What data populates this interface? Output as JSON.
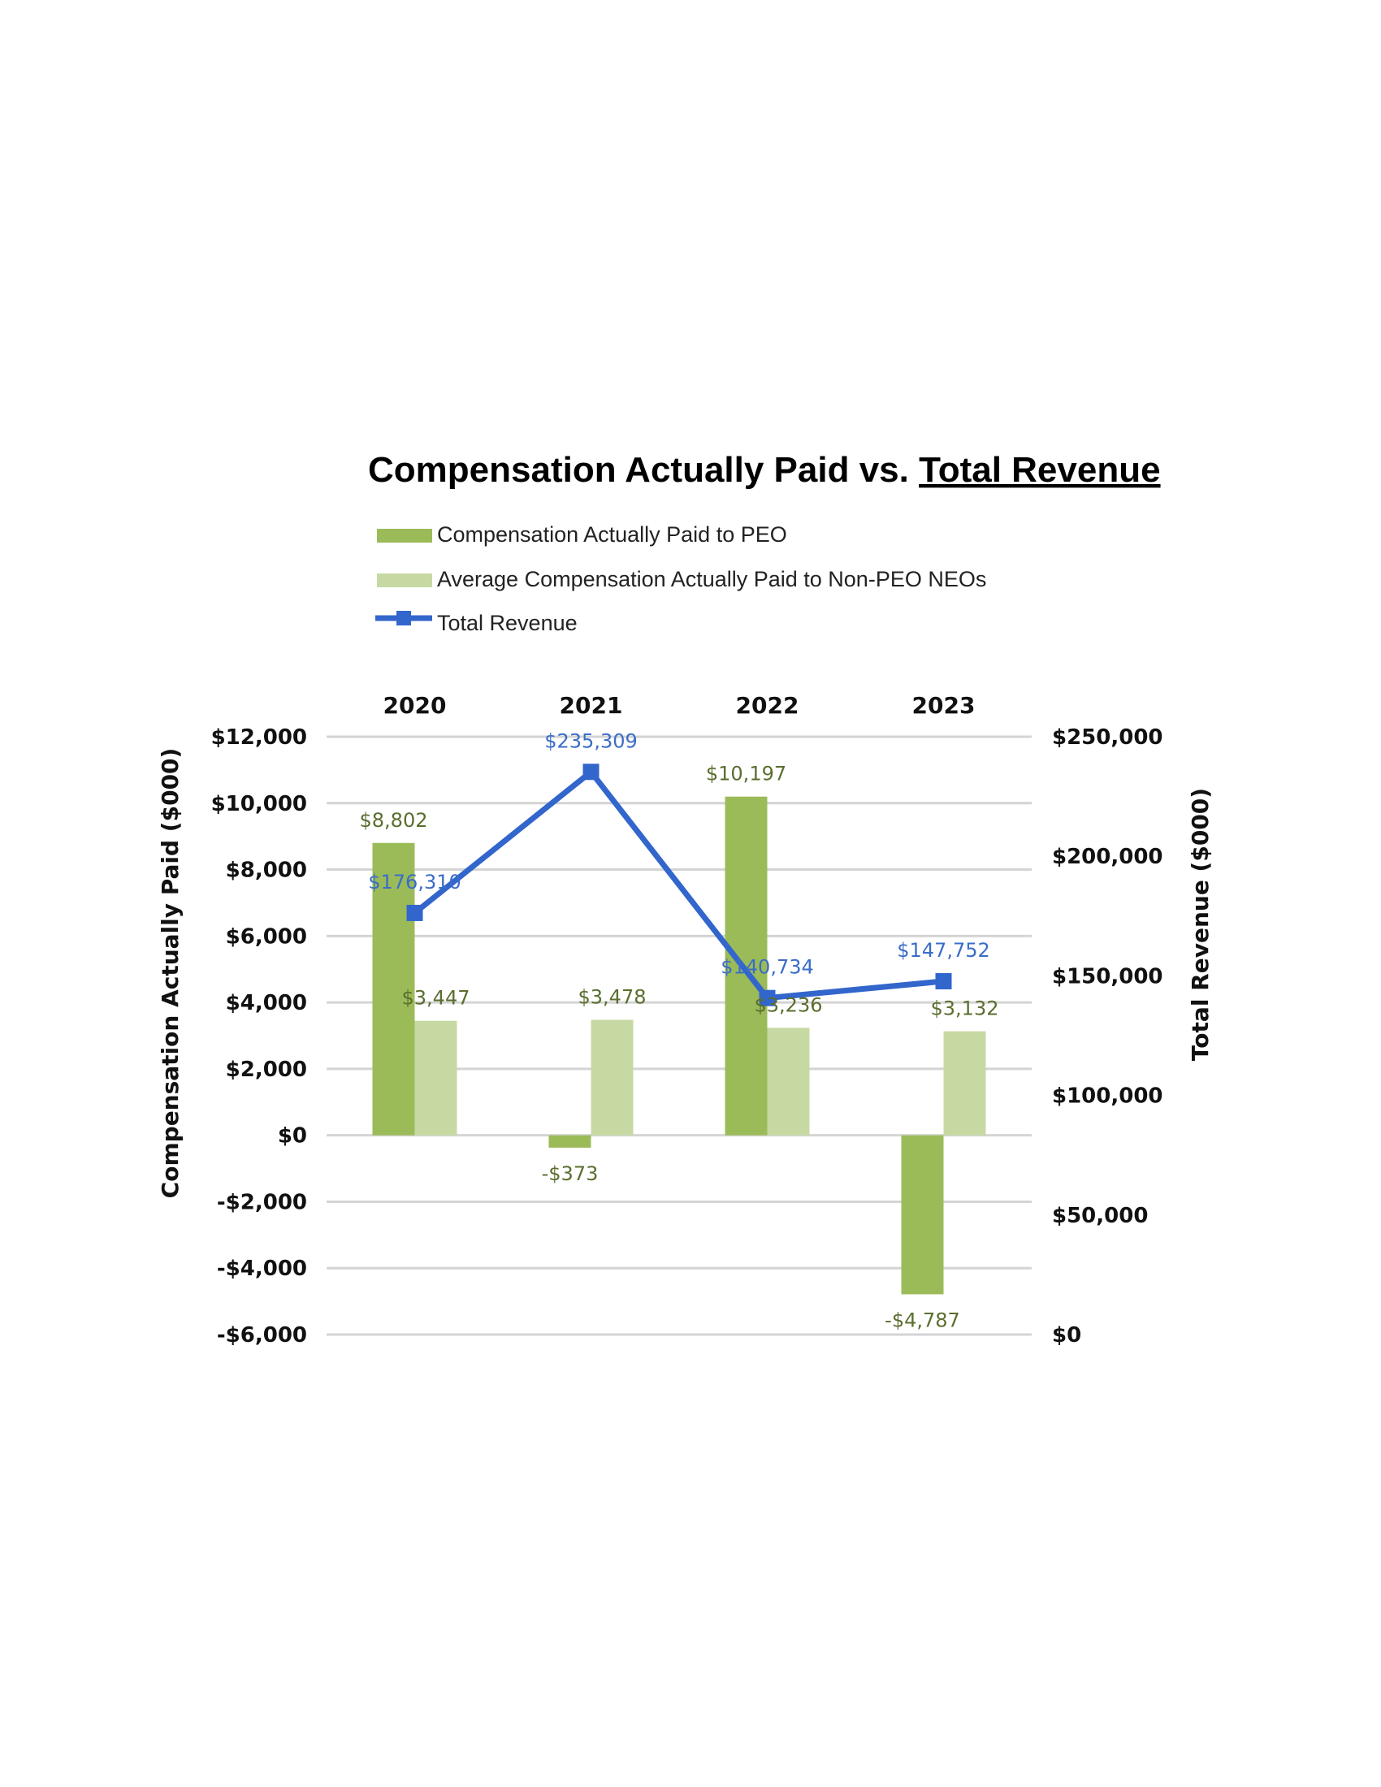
{
  "chart_data": {
    "type": "bar",
    "title_prefix": "Compensation Actually Paid vs. ",
    "title_underlined": "Total Revenue",
    "categories": [
      "2020",
      "2021",
      "2022",
      "2023"
    ],
    "series": [
      {
        "name": "Compensation Actually Paid to PEO",
        "type": "bar",
        "axis": "left",
        "color": "#9bbb59",
        "values": [
          8802,
          -373,
          10197,
          -4787
        ],
        "labels": [
          "$8,802",
          "-$373",
          "$10,197",
          "-$4,787"
        ]
      },
      {
        "name": "Average Compensation Actually Paid to Non-PEO NEOs",
        "type": "bar",
        "axis": "left",
        "color": "#c7d9a2",
        "values": [
          3447,
          3478,
          3236,
          3132
        ],
        "labels": [
          "$3,447",
          "$3,478",
          "$3,236",
          "$3,132"
        ]
      },
      {
        "name": "Total Revenue",
        "type": "line",
        "axis": "right",
        "color": "#3366cc",
        "values": [
          176310,
          235309,
          140734,
          147752
        ],
        "labels": [
          "$176,310",
          "$235,309",
          "$140,734",
          "$147,752"
        ]
      }
    ],
    "ylabel": "Compensation Actually Paid ($000)",
    "y2label": "Total Revenue ($000)",
    "ylim": [
      -6000,
      12000
    ],
    "y2lim": [
      0,
      250000
    ],
    "yticks": [
      12000,
      10000,
      8000,
      6000,
      4000,
      2000,
      0,
      -2000,
      -4000,
      -6000
    ],
    "ytick_labels": [
      "$12,000",
      "$10,000",
      "$8,000",
      "$6,000",
      "$4,000",
      "$2,000",
      "$0",
      "-$2,000",
      "-$4,000",
      "-$6,000"
    ],
    "y2ticks": [
      250000,
      200000,
      150000,
      100000,
      50000,
      0
    ],
    "y2tick_labels": [
      "$250,000",
      "$200,000",
      "$150,000",
      "$100,000",
      "$50,000",
      "$0"
    ],
    "grid": true,
    "legend_position": "top"
  }
}
